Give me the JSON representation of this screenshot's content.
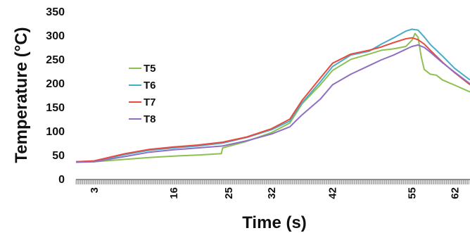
{
  "chart_data": {
    "type": "line",
    "title": "",
    "xlabel": "Time (s)",
    "ylabel": "Temperature (°C)",
    "xlim": [
      0,
      64.5
    ],
    "ylim": [
      0,
      350
    ],
    "yticks": [
      0,
      50,
      100,
      150,
      200,
      250,
      300,
      350
    ],
    "xticks": [
      3,
      16,
      25,
      32,
      42,
      55,
      62
    ],
    "grid": false,
    "legend_position": "left",
    "series": [
      {
        "name": "T5",
        "color": "#8cc152",
        "x": [
          0,
          3,
          8,
          12,
          16,
          20,
          23.8,
          24.0,
          28,
          32,
          35,
          37,
          40,
          42,
          45,
          48,
          50,
          52,
          54,
          55,
          55.5,
          56,
          56.5,
          57,
          58,
          59,
          60,
          62,
          64.5
        ],
        "y": [
          37,
          37,
          42,
          46,
          49,
          51,
          54,
          66,
          80,
          98,
          118,
          158,
          198,
          228,
          251,
          262,
          270,
          273,
          278,
          291,
          305,
          297,
          258,
          230,
          220,
          218,
          208,
          197,
          183
        ]
      },
      {
        "name": "T6",
        "color": "#4bacc6",
        "x": [
          0,
          3,
          8,
          12,
          16,
          20,
          24,
          28,
          32,
          35,
          37,
          40,
          42,
          45,
          48,
          50,
          52,
          54,
          55,
          56,
          57,
          58,
          60,
          62,
          64.5
        ],
        "y": [
          37,
          38,
          52,
          61,
          66,
          70,
          76,
          88,
          104,
          122,
          160,
          204,
          236,
          260,
          268,
          283,
          296,
          310,
          314,
          312,
          298,
          282,
          258,
          232,
          208
        ]
      },
      {
        "name": "T7",
        "color": "#e84a3f",
        "x": [
          0,
          3,
          8,
          12,
          16,
          20,
          24,
          28,
          32,
          35,
          37,
          40,
          42,
          45,
          48,
          50,
          52,
          54,
          55,
          56,
          57,
          58,
          60,
          62,
          64.5
        ],
        "y": [
          37,
          39,
          54,
          63,
          68,
          72,
          78,
          89,
          106,
          126,
          165,
          212,
          243,
          262,
          270,
          277,
          286,
          294,
          296,
          292,
          283,
          270,
          245,
          223,
          198
        ]
      },
      {
        "name": "T8",
        "color": "#8e6fc1",
        "x": [
          0,
          3,
          8,
          12,
          16,
          20,
          24,
          28,
          32,
          35,
          37,
          40,
          42,
          45,
          48,
          50,
          52,
          54,
          55,
          56,
          57,
          58,
          60,
          62,
          64.5
        ],
        "y": [
          36,
          37,
          48,
          57,
          62,
          66,
          70,
          81,
          95,
          110,
          135,
          168,
          198,
          220,
          238,
          250,
          260,
          272,
          278,
          281,
          276,
          266,
          244,
          224,
          200
        ]
      }
    ]
  }
}
